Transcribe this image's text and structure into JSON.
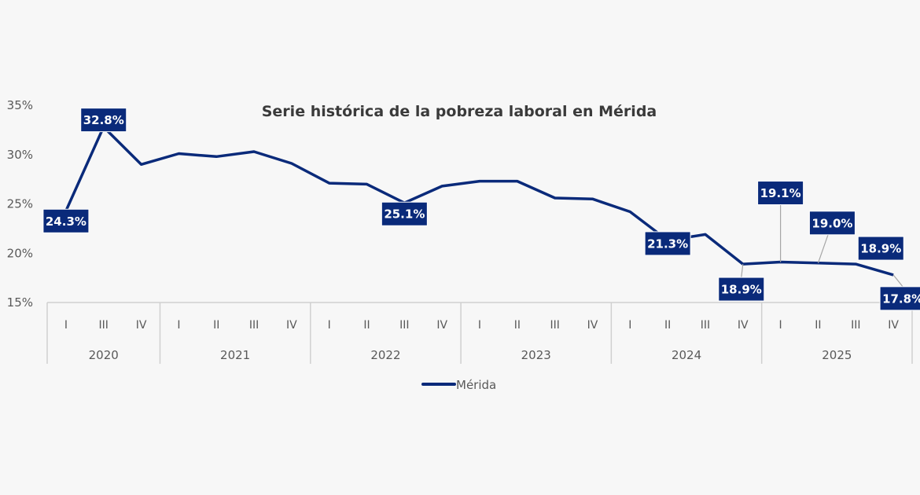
{
  "chart_data": {
    "type": "line",
    "title": "Serie histórica de la pobreza laboral en Mérida",
    "xlabel": "",
    "ylabel": "",
    "ylim": [
      15,
      35
    ],
    "yticks": [
      "15%",
      "20%",
      "25%",
      "30%",
      "35%"
    ],
    "ytick_values": [
      15,
      20,
      25,
      30,
      35
    ],
    "grid": false,
    "legend_position": "bottom",
    "colors": {
      "series": "#0a2a7a",
      "label_bg": "#0a2a7a",
      "label_text": "#ffffff",
      "axis": "#d0d0d0",
      "text": "#595959"
    },
    "years": [
      {
        "year": "2020",
        "quarters": [
          "I",
          "III",
          "IV"
        ]
      },
      {
        "year": "2021",
        "quarters": [
          "I",
          "II",
          "III",
          "IV"
        ]
      },
      {
        "year": "2022",
        "quarters": [
          "I",
          "II",
          "III",
          "IV"
        ]
      },
      {
        "year": "2023",
        "quarters": [
          "I",
          "II",
          "III",
          "IV"
        ]
      },
      {
        "year": "2024",
        "quarters": [
          "I",
          "II",
          "III",
          "IV"
        ]
      },
      {
        "year": "2025",
        "quarters": [
          "I",
          "II",
          "III",
          "IV"
        ]
      }
    ],
    "series": [
      {
        "name": "Mérida",
        "values": [
          24.3,
          32.8,
          29.0,
          30.1,
          29.8,
          30.3,
          29.1,
          27.1,
          27.0,
          25.1,
          26.8,
          27.3,
          27.3,
          25.6,
          25.5,
          24.2,
          21.3,
          21.9,
          18.9,
          19.1,
          19.0,
          18.9,
          17.8
        ]
      }
    ],
    "data_labels": [
      {
        "index": 0,
        "text": "24.3%"
      },
      {
        "index": 1,
        "text": "32.8%"
      },
      {
        "index": 9,
        "text": "25.1%"
      },
      {
        "index": 16,
        "text": "21.3%"
      },
      {
        "index": 18,
        "text": "18.9%"
      },
      {
        "index": 19,
        "text": "19.1%"
      },
      {
        "index": 20,
        "text": "19.0%"
      },
      {
        "index": 21,
        "text": "18.9%"
      },
      {
        "index": 22,
        "text": "17.8%"
      }
    ]
  }
}
